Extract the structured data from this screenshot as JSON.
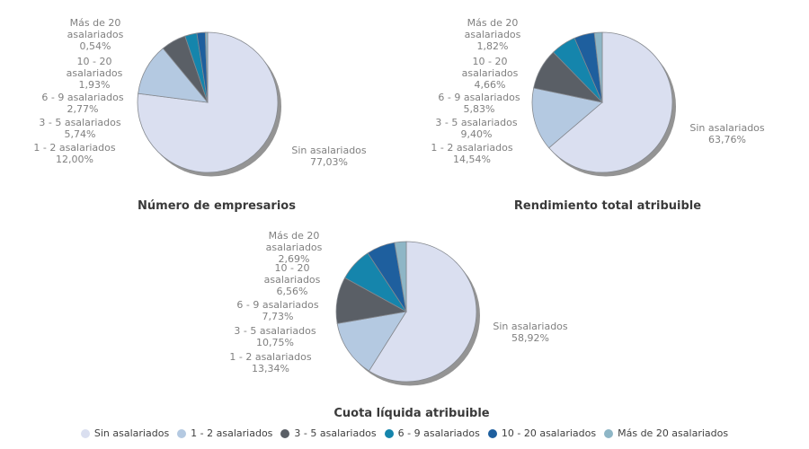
{
  "style": {
    "background": "#ffffff",
    "label_text_color": "#808080",
    "title_text_color": "#3a3a3a",
    "legend_text_color": "#404040",
    "shadow_color": "#949494",
    "slice_stroke": "#85898f",
    "slice_colors": [
      "#dadff0",
      "#b4c9e1",
      "#5a5f66",
      "#1585ac",
      "#1e5f9e",
      "#8eb6c6"
    ]
  },
  "legend": {
    "position": "bottom",
    "items": [
      {
        "label": "Sin asalariados",
        "color": "#dadff0"
      },
      {
        "label": "1 - 2 asalariados",
        "color": "#b4c9e1"
      },
      {
        "label": "3 - 5 asalariados",
        "color": "#5a5f66"
      },
      {
        "label": "6 - 9 asalariados",
        "color": "#1585ac"
      },
      {
        "label": "10 - 20 asalariados",
        "color": "#1e5f9e"
      },
      {
        "label": "Más de 20 asalariados",
        "color": "#8eb6c6"
      }
    ]
  },
  "chart_data": [
    {
      "type": "pie",
      "title": "Número de empresarios",
      "categories": [
        "Sin asalariados",
        "1 - 2 asalariados",
        "3 - 5 asalariados",
        "6 - 9 asalariados",
        "10 - 20 asalariados",
        "Más de 20 asalariados"
      ],
      "values": [
        77.03,
        12.0,
        5.74,
        2.77,
        1.93,
        0.54
      ],
      "start_angle_deg": 0,
      "direction": "clockwise",
      "left_labels": [
        {
          "lines": [
            "Más de 20",
            "asalariados",
            "0,54%"
          ]
        },
        {
          "lines": [
            "10 - 20",
            "asalariados",
            "1,93%"
          ]
        },
        {
          "lines": [
            "6 - 9 asalariados",
            "2,77%"
          ]
        },
        {
          "lines": [
            "3 - 5 asalariados",
            "5,74%"
          ]
        },
        {
          "lines": [
            "1 - 2 asalariados",
            "12,00%"
          ]
        }
      ],
      "right_label": {
        "lines": [
          "Sin asalariados",
          "77,03%"
        ]
      }
    },
    {
      "type": "pie",
      "title": "Rendimiento total atribuible",
      "categories": [
        "Sin asalariados",
        "1 - 2 asalariados",
        "3 - 5 asalariados",
        "6 - 9 asalariados",
        "10 - 20 asalariados",
        "Más de 20 asalariados"
      ],
      "values": [
        63.76,
        14.54,
        9.4,
        5.83,
        4.66,
        1.82
      ],
      "start_angle_deg": 0,
      "direction": "clockwise",
      "left_labels": [
        {
          "lines": [
            "Más de 20",
            "asalariados",
            "1,82%"
          ]
        },
        {
          "lines": [
            "10 - 20",
            "asalariados",
            "4,66%"
          ]
        },
        {
          "lines": [
            "6 - 9 asalariados",
            "5,83%"
          ]
        },
        {
          "lines": [
            "3 - 5 asalariados",
            "9,40%"
          ]
        },
        {
          "lines": [
            "1 - 2 asalariados",
            "14,54%"
          ]
        }
      ],
      "right_label": {
        "lines": [
          "Sin asalariados",
          "63,76%"
        ]
      }
    },
    {
      "type": "pie",
      "title": "Cuota líquida atribuible",
      "categories": [
        "Sin asalariados",
        "1 - 2 asalariados",
        "3 - 5 asalariados",
        "6 - 9 asalariados",
        "10 - 20 asalariados",
        "Más de 20 asalariados"
      ],
      "values": [
        58.92,
        13.34,
        10.75,
        7.73,
        6.56,
        2.69
      ],
      "start_angle_deg": 0,
      "direction": "clockwise",
      "left_labels": [
        {
          "lines": [
            "Más de 20",
            "asalariados",
            "2,69%"
          ]
        },
        {
          "lines": [
            "10 - 20",
            "asalariados",
            "6,56%"
          ]
        },
        {
          "lines": [
            "6 - 9 asalariados",
            "7,73%"
          ]
        },
        {
          "lines": [
            "3 - 5 asalariados",
            "10,75%"
          ]
        },
        {
          "lines": [
            "1 - 2 asalariados",
            "13,34%"
          ]
        }
      ],
      "right_label": {
        "lines": [
          "Sin asalariados",
          "58,92%"
        ]
      }
    }
  ]
}
